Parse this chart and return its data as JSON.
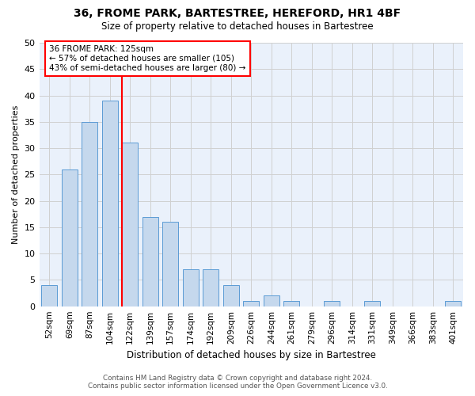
{
  "title1": "36, FROME PARK, BARTESTREE, HEREFORD, HR1 4BF",
  "title2": "Size of property relative to detached houses in Bartestree",
  "xlabel": "Distribution of detached houses by size in Bartestree",
  "ylabel": "Number of detached properties",
  "categories": [
    "52sqm",
    "69sqm",
    "87sqm",
    "104sqm",
    "122sqm",
    "139sqm",
    "157sqm",
    "174sqm",
    "192sqm",
    "209sqm",
    "226sqm",
    "244sqm",
    "261sqm",
    "279sqm",
    "296sqm",
    "314sqm",
    "331sqm",
    "349sqm",
    "366sqm",
    "383sqm",
    "401sqm"
  ],
  "values": [
    4,
    26,
    35,
    39,
    31,
    17,
    16,
    7,
    7,
    4,
    1,
    2,
    1,
    0,
    1,
    0,
    1,
    0,
    0,
    0,
    1
  ],
  "bar_color": "#c5d8ed",
  "bar_edge_color": "#5b9bd5",
  "highlight_line_index": 4,
  "annotation_text": "36 FROME PARK: 125sqm\n← 57% of detached houses are smaller (105)\n43% of semi-detached houses are larger (80) →",
  "annotation_box_color": "white",
  "annotation_box_edge_color": "red",
  "grid_color": "#d0d0d0",
  "bg_color": "#eaf1fb",
  "ylim": [
    0,
    50
  ],
  "yticks": [
    0,
    5,
    10,
    15,
    20,
    25,
    30,
    35,
    40,
    45,
    50
  ],
  "footer1": "Contains HM Land Registry data © Crown copyright and database right 2024.",
  "footer2": "Contains public sector information licensed under the Open Government Licence v3.0."
}
